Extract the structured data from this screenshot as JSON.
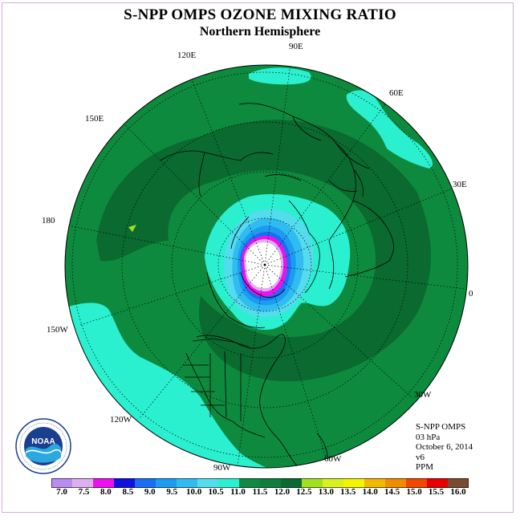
{
  "title": "S-NPP OMPS OZONE MIXING RATIO",
  "subtitle": "Northern Hemisphere",
  "longitude_labels": {
    "lon_90E": "90E",
    "lon_60E": "60E",
    "lon_120E": "120E",
    "lon_150E": "150E",
    "lon_30E": "30E",
    "lon_180": "180",
    "lon_0": "0",
    "lon_150W": "150W",
    "lon_120W": "120W",
    "lon_30W": "30W",
    "lon_90W": "90W",
    "lon_60W": "60W"
  },
  "info": {
    "instrument": "S-NPP OMPS",
    "level": "03 hPa",
    "date": "October 6, 2014",
    "version": "v6",
    "units": "PPM"
  },
  "logo": {
    "text": "NOAA",
    "ring_text": "NATIONAL OCEANIC AND ATMOSPHERIC ADMINISTRATION · U.S. DEPARTMENT OF COMMERCE"
  },
  "colorbar": {
    "ticks": [
      "7.0",
      "7.5",
      "8.0",
      "8.5",
      "9.0",
      "9.5",
      "10.0",
      "10.5",
      "11.0",
      "11.5",
      "12.0",
      "12.5",
      "13.0",
      "13.5",
      "14.0",
      "14.5",
      "15.0",
      "15.5",
      "16.0"
    ],
    "colors": [
      "#b88cf0",
      "#dcb0ee",
      "#ee10ee",
      "#1010e0",
      "#1a6ef0",
      "#1c9cf0",
      "#30bcf0",
      "#54dcee",
      "#2af0d0",
      "#108a40",
      "#0e7e3a",
      "#0a6a30",
      "#a0e020",
      "#d8f020",
      "#f4f400",
      "#f0b800",
      "#f08c00",
      "#f04800",
      "#e80000",
      "#7a4a30"
    ]
  },
  "map_colors": {
    "ocean_base": "#0e8a3e",
    "dark_band": "#0a6a30",
    "cyan_field": "#2af0d0",
    "polar_edge_blue": "#30bcf0",
    "polar_mid_blue": "#1a6ef0",
    "polar_magenta": "#ee10ee",
    "polar_core": "#ffffff",
    "yellow_green_spot": "#a0e020"
  }
}
